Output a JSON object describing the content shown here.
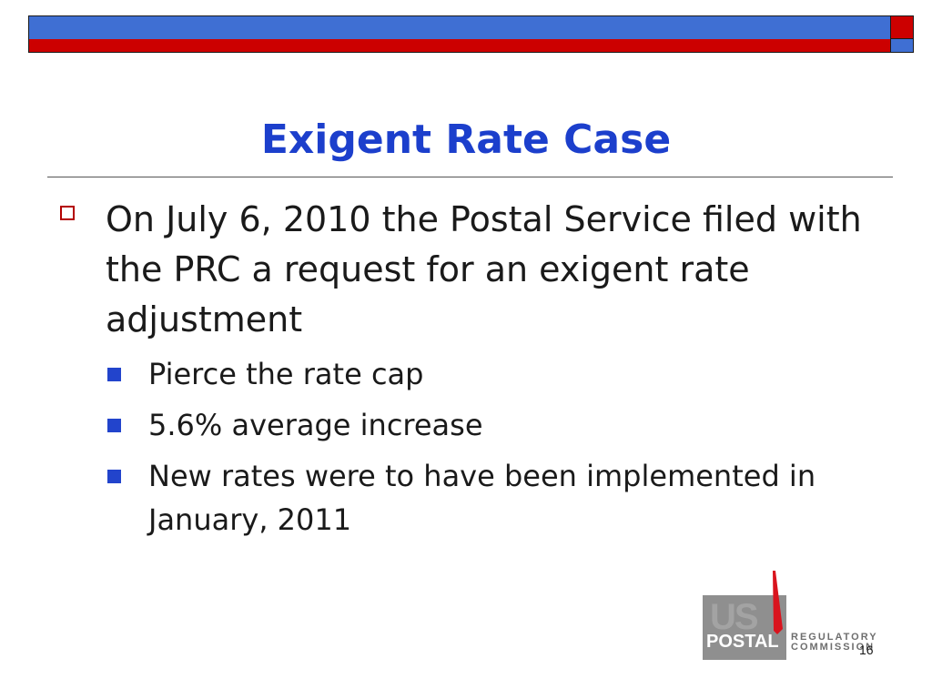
{
  "slide": {
    "title": "Exigent Rate Case",
    "bullets": [
      {
        "text": "On July 6, 2010 the Postal Service filed with the PRC a request for an exigent rate adjustment",
        "sub": [
          "Pierce the rate cap",
          "5.6% average increase",
          "New rates were to have been implemented in January, 2011"
        ]
      }
    ],
    "page_number": "16"
  },
  "logo": {
    "us_text": "US",
    "postal_text": "POSTAL",
    "line1": "REGULATORY",
    "line2": "COMMISSION"
  },
  "colors": {
    "title": "#1c3fcc",
    "banner_blue": "#3f6fd3",
    "banner_red": "#cc0000",
    "bullet_square": "#2244cc",
    "bullet_hollow": "#b30000"
  }
}
